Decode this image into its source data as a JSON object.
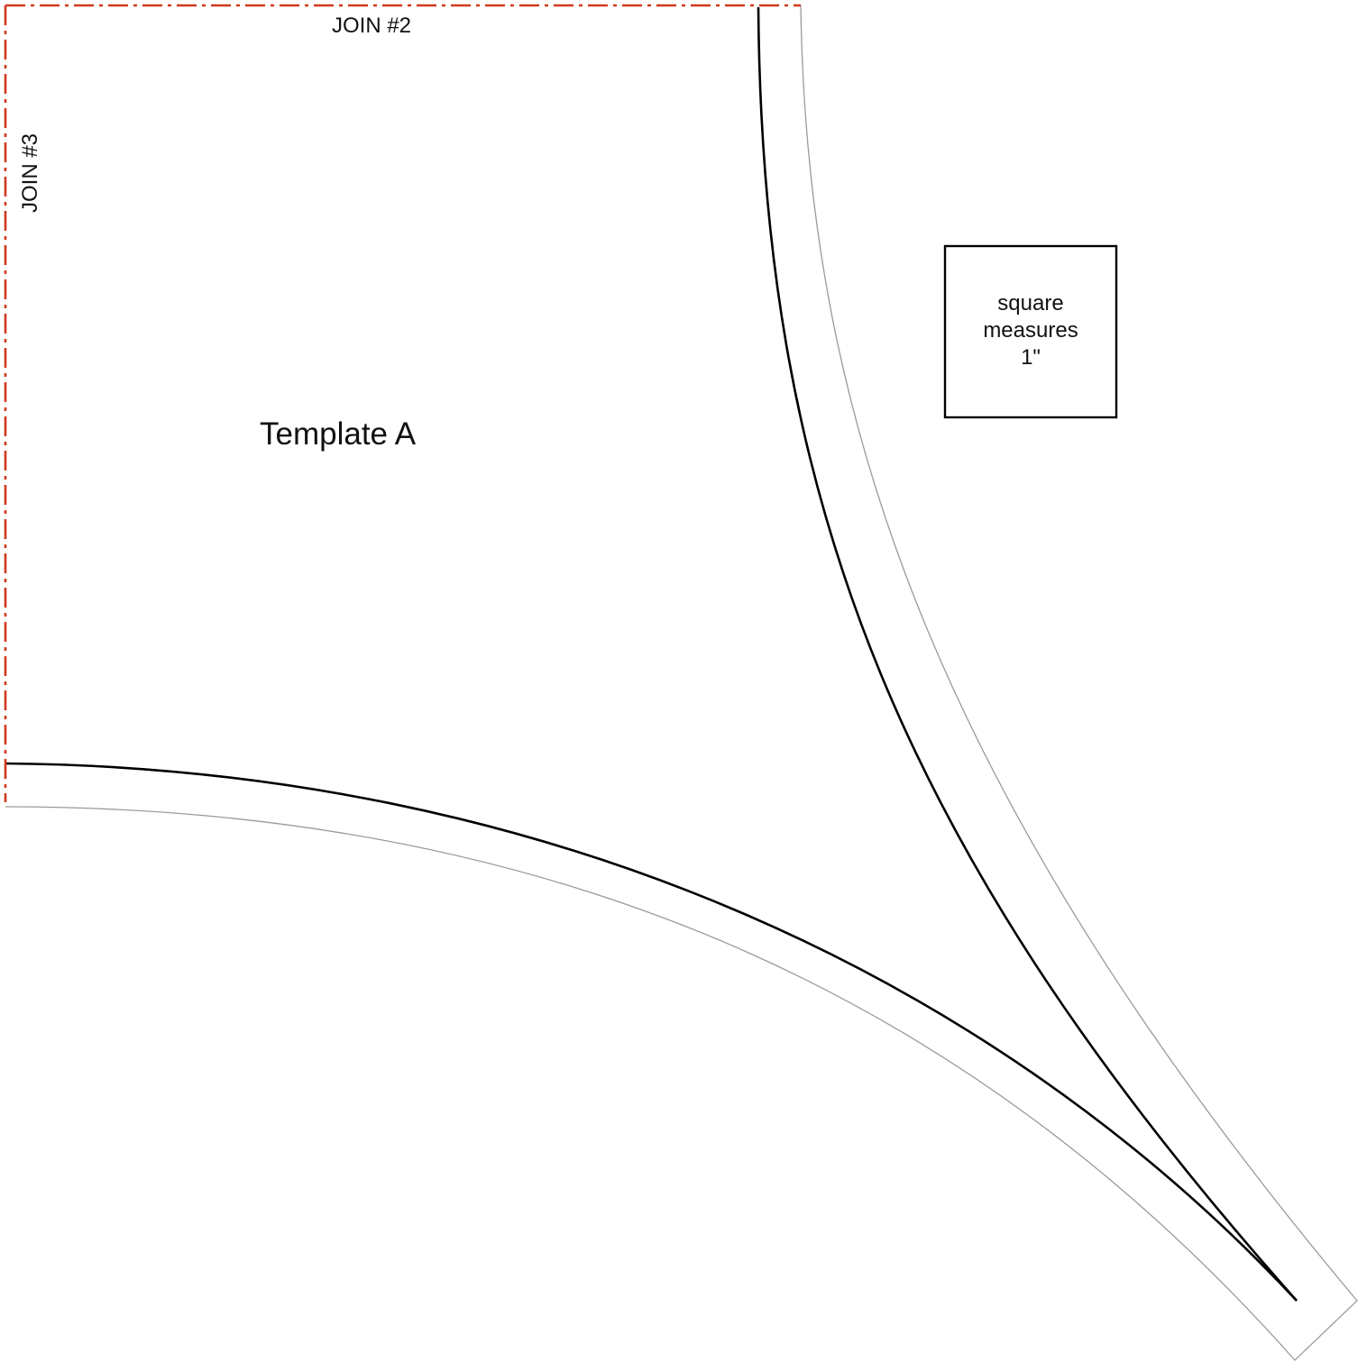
{
  "template": {
    "title": "Template A",
    "join_top": "JOIN #2",
    "join_left": "JOIN #3"
  },
  "scale_box": {
    "line1": "square",
    "line2": "measures",
    "line3": "1\""
  },
  "colors": {
    "join_line": "#d0391f",
    "seam_line": "#000000",
    "cut_line": "#9a9a9a",
    "text": "#111111"
  }
}
